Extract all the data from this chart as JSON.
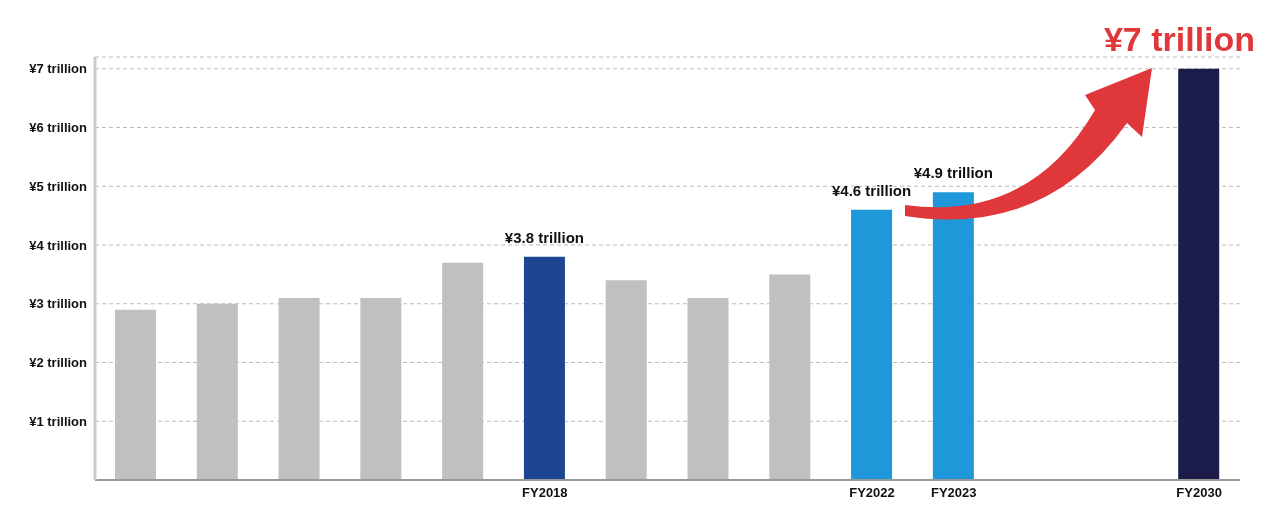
{
  "chart_data": {
    "type": "bar",
    "categories": [
      null,
      null,
      null,
      null,
      null,
      "FY2018",
      null,
      null,
      null,
      "FY2022",
      "FY2023",
      null,
      null,
      "FY2030"
    ],
    "values": [
      2.9,
      3.0,
      3.1,
      3.1,
      3.7,
      3.8,
      3.4,
      3.1,
      3.5,
      4.6,
      4.9,
      null,
      null,
      7
    ],
    "colors": [
      "#c0c0c0",
      "#c0c0c0",
      "#c0c0c0",
      "#c0c0c0",
      "#c0c0c0",
      "#1c4592",
      "#c0c0c0",
      "#c0c0c0",
      "#c0c0c0",
      "#1e98d8",
      "#1e98d8",
      "#c0c0c0",
      "#c0c0c0",
      "#1c1c4a"
    ],
    "value_labels": [
      null,
      null,
      null,
      null,
      null,
      "¥3.8 trillion",
      null,
      null,
      null,
      "¥4.6 trillion",
      "¥4.9 trillion",
      null,
      null,
      null
    ],
    "annotations": [
      {
        "text": "¥7 trillion",
        "x": "FY2030",
        "y": 7
      }
    ],
    "ylim": [
      0,
      7.2
    ],
    "yticks": [
      {
        "value": 1,
        "label": "¥1 trillion"
      },
      {
        "value": 2,
        "label": "¥2 trillion"
      },
      {
        "value": 3,
        "label": "¥3 trillion"
      },
      {
        "value": 4,
        "label": "¥4 trillion"
      },
      {
        "value": 5,
        "label": "¥5 trillion"
      },
      {
        "value": 6,
        "label": "¥6 trillion"
      },
      {
        "value": 7,
        "label": "¥7 trillion"
      }
    ],
    "grid": "y"
  }
}
